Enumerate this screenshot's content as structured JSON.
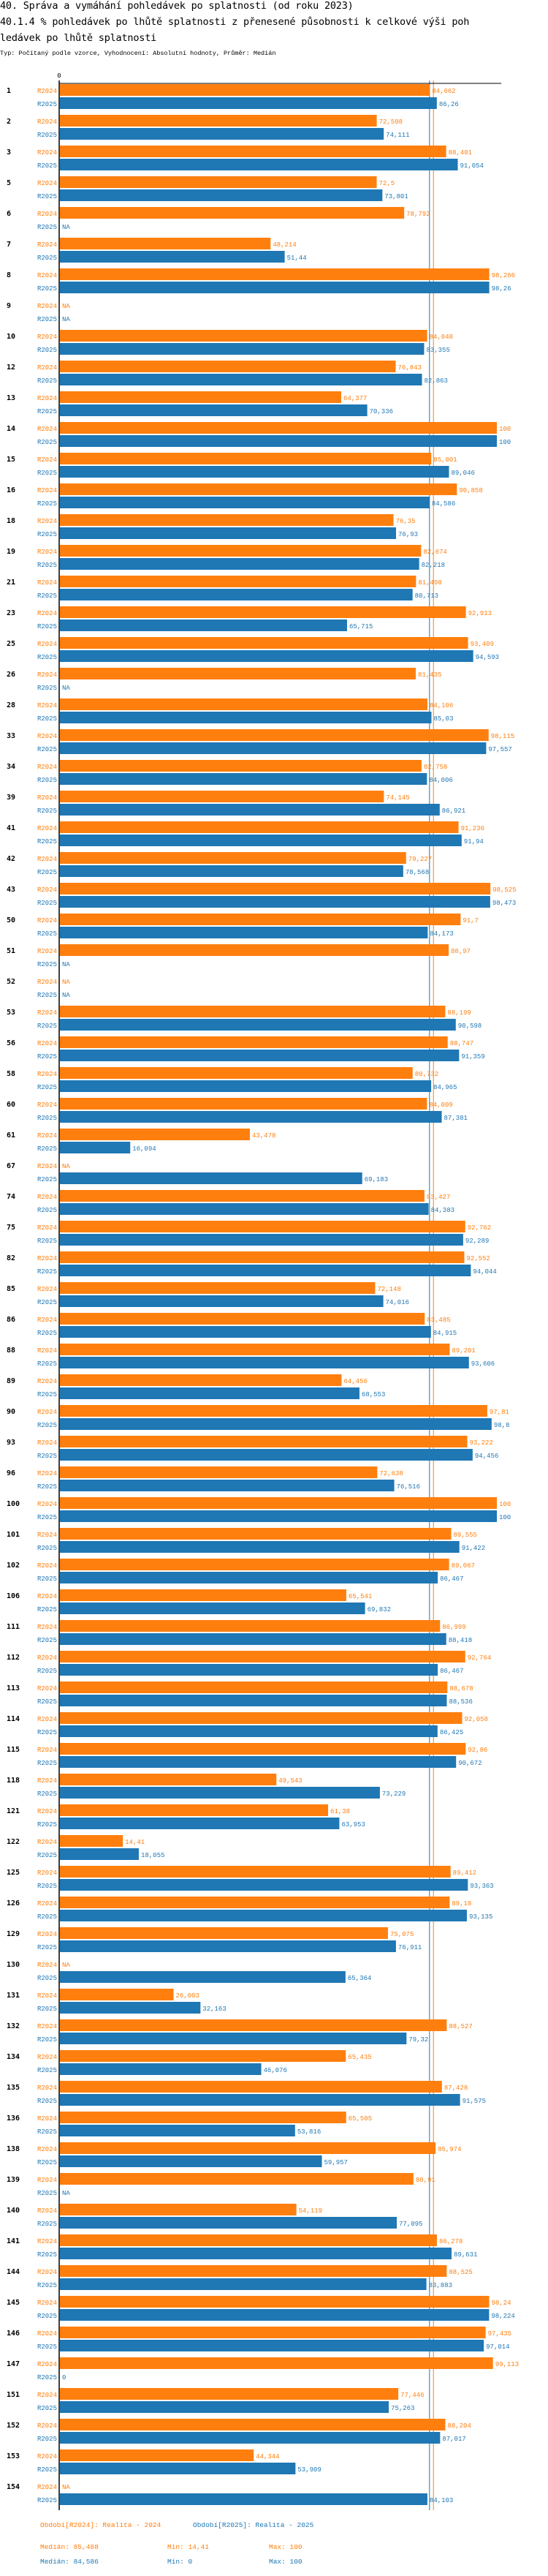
{
  "header": {
    "title_line1": "40. Správa a vymáhání pohledávek po splatnosti (od roku 2023)",
    "title_line2": "40.1.4 % pohledávek po lhůtě splatnosti z přenesené působnosti k celkové výši poh",
    "title_line3": "ledávek po lhůtě splatnosti",
    "subtitle": "Typ: Počítaný podle vzorce, Vyhodnocení: Absolutní hodnoty, Průměr: Medián"
  },
  "colors": {
    "R2024": "#ff7f0e",
    "R2025": "#1f77b4",
    "axis": "#000000"
  },
  "chart_data": {
    "type": "bar",
    "orientation": "horizontal",
    "xlim": [
      0,
      100
    ],
    "x_tick_labels": [
      "0"
    ],
    "grid": false,
    "na_label": "NA",
    "series_names": [
      "R2024",
      "R2025"
    ],
    "categories": [
      "1",
      "2",
      "3",
      "5",
      "6",
      "7",
      "8",
      "9",
      "10",
      "12",
      "13",
      "14",
      "15",
      "16",
      "18",
      "19",
      "21",
      "23",
      "25",
      "26",
      "28",
      "33",
      "34",
      "39",
      "41",
      "42",
      "43",
      "50",
      "51",
      "52",
      "53",
      "56",
      "58",
      "60",
      "61",
      "67",
      "74",
      "75",
      "82",
      "85",
      "86",
      "88",
      "89",
      "90",
      "93",
      "96",
      "100",
      "101",
      "102",
      "106",
      "111",
      "112",
      "113",
      "114",
      "115",
      "118",
      "121",
      "122",
      "125",
      "126",
      "129",
      "130",
      "131",
      "132",
      "134",
      "135",
      "136",
      "138",
      "139",
      "140",
      "141",
      "144",
      "145",
      "146",
      "147",
      "151",
      "152",
      "153",
      "154"
    ],
    "series": [
      {
        "name": "R2024",
        "values": [
          84.662,
          72.508,
          88.401,
          72.5,
          78.792,
          48.214,
          98.266,
          null,
          84.048,
          76.843,
          64.377,
          100,
          85.001,
          90.858,
          76.35,
          82.674,
          81.498,
          92.913,
          93.409,
          81.435,
          84.106,
          98.115,
          82.758,
          74.145,
          91.236,
          79.227,
          98.525,
          91.7,
          88.97,
          null,
          88.199,
          88.747,
          80.732,
          84.009,
          43.478,
          null,
          83.427,
          92.762,
          92.552,
          72.148,
          83.485,
          89.201,
          64.456,
          97.81,
          93.222,
          72.638,
          100,
          89.555,
          89.067,
          65.541,
          86.999,
          92.764,
          88.678,
          92.058,
          92.86,
          49.543,
          61.38,
          14.41,
          89.412,
          89.18,
          75.075,
          null,
          26.003,
          88.527,
          65.435,
          87.428,
          65.505,
          85.974,
          80.91,
          54.119,
          86.278,
          88.525,
          98.24,
          97.435,
          99.113,
          77.446,
          88.204,
          44.344,
          null
        ],
        "labels": [
          "84,662",
          "72,508",
          "88,401",
          "72,5",
          "78,792",
          "48,214",
          "98,266",
          "NA",
          "84,048",
          "76,843",
          "64,377",
          "100",
          "85,001",
          "90,858",
          "76,35",
          "82,674",
          "81,498",
          "92,913",
          "93,409",
          "81,435",
          "84,106",
          "98,115",
          "82,758",
          "74,145",
          "91,236",
          "79,227",
          "98,525",
          "91,7",
          "88,97",
          "NA",
          "88,199",
          "88,747",
          "80,732",
          "84,009",
          "43,478",
          "NA",
          "83,427",
          "92,762",
          "92,552",
          "72,148",
          "83,485",
          "89,201",
          "64,456",
          "97,81",
          "93,222",
          "72,638",
          "100",
          "89,555",
          "89,067",
          "65,541",
          "86,999",
          "92,764",
          "88,678",
          "92,058",
          "92,86",
          "49,543",
          "61,38",
          "14,41",
          "89,412",
          "89,18",
          "75,075",
          "NA",
          "26,003",
          "88,527",
          "65,435",
          "87,428",
          "65,505",
          "85,974",
          "80,91",
          "54,119",
          "86,278",
          "88,525",
          "98,24",
          "97,435",
          "99,113",
          "77,446",
          "88,204",
          "44,344",
          "NA"
        ]
      },
      {
        "name": "R2025",
        "values": [
          86.26,
          74.111,
          91.054,
          73.801,
          null,
          51.44,
          98.26,
          null,
          83.355,
          82.863,
          70.336,
          100,
          89.046,
          84.586,
          76.93,
          82.218,
          80.713,
          65.715,
          94.593,
          null,
          85.03,
          97.557,
          84.006,
          86.921,
          91.94,
          78.568,
          98.473,
          84.173,
          null,
          null,
          90.598,
          91.359,
          84.965,
          87.381,
          16.094,
          69.183,
          84.383,
          92.289,
          94.044,
          74.016,
          84.915,
          93.606,
          68.553,
          98.8,
          94.456,
          76.516,
          100,
          91.422,
          86.467,
          69.832,
          88.418,
          86.467,
          88.536,
          86.425,
          90.672,
          73.229,
          63.953,
          18.055,
          93.363,
          93.135,
          76.911,
          65.364,
          32.163,
          79.32,
          46.076,
          91.575,
          53.816,
          59.957,
          null,
          77.095,
          89.631,
          83.883,
          98.224,
          97.014,
          0,
          75.263,
          87.017,
          53.909,
          84.103
        ],
        "labels": [
          "86,26",
          "74,111",
          "91,054",
          "73,801",
          "NA",
          "51,44",
          "98,26",
          "NA",
          "83,355",
          "82,863",
          "70,336",
          "100",
          "89,046",
          "84,586",
          "76,93",
          "82,218",
          "80,713",
          "65,715",
          "94,593",
          "NA",
          "85,03",
          "97,557",
          "84,006",
          "86,921",
          "91,94",
          "78,568",
          "98,473",
          "84,173",
          "NA",
          "NA",
          "90,598",
          "91,359",
          "84,965",
          "87,381",
          "16,094",
          "69,183",
          "84,383",
          "92,289",
          "94,044",
          "74,016",
          "84,915",
          "93,606",
          "68,553",
          "98,8",
          "94,456",
          "76,516",
          "100",
          "91,422",
          "86,467",
          "69,832",
          "88,418",
          "86,467",
          "88,536",
          "86,425",
          "90,672",
          "73,229",
          "63,953",
          "18,055",
          "93,363",
          "93,135",
          "76,911",
          "65,364",
          "32,163",
          "79,32",
          "46,076",
          "91,575",
          "53,816",
          "59,957",
          "NA",
          "77,095",
          "89,631",
          "83,883",
          "98,224",
          "97,014",
          "0",
          "75,263",
          "87,017",
          "53,909",
          "84,103"
        ]
      }
    ],
    "reference_lines": [
      {
        "series": "R2024",
        "type": "median",
        "value": 85.488
      },
      {
        "series": "R2025",
        "type": "median",
        "value": 84.586
      }
    ]
  },
  "legend": {
    "r2024_period": "Období[R2024]: Realita - 2024",
    "r2025_period": "Období[R2025]: Realita - 2025",
    "r2024_median": "Medián: 85,488",
    "r2024_min": "Min: 14,41",
    "r2024_max": "Max: 100",
    "r2025_median": "Medián: 84,586",
    "r2025_min": "Min: 0",
    "r2025_max": "Max: 100"
  }
}
